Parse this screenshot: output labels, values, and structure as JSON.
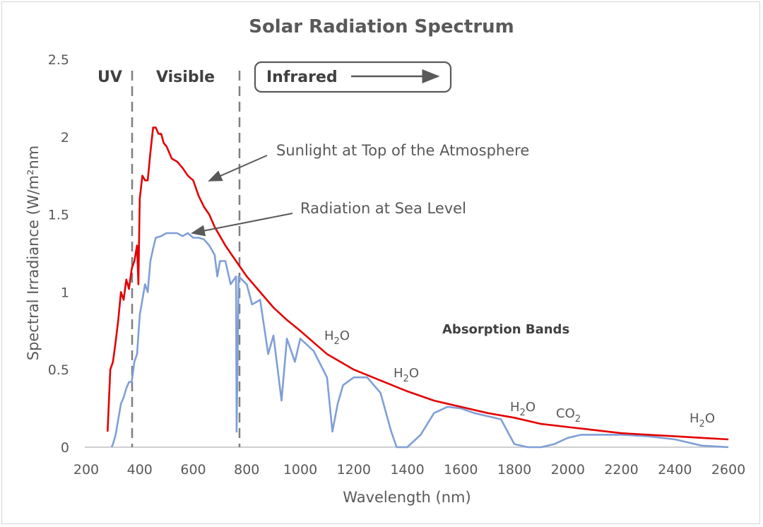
{
  "colors": {
    "top_of_atmosphere": "#e30000",
    "sea_level": "#7f9fd6",
    "axis": "#bfbfbf",
    "text": "#595959",
    "annotation_line": "#595959"
  },
  "chart_data": {
    "type": "line",
    "title": "Solar Radiation Spectrum",
    "xlabel": "Wavelength (nm)",
    "ylabel": "Spectral Irradiance (W/m²nm",
    "xlim": [
      200,
      2600
    ],
    "ylim": [
      0,
      2.5
    ],
    "x_ticks": [
      "200",
      "400",
      "600",
      "800",
      "1000",
      "1200",
      "1400",
      "1600",
      "1800",
      "2000",
      "2200",
      "2400",
      "2600"
    ],
    "y_ticks": [
      "0",
      "0.5",
      "1",
      "1.5",
      "2",
      "2.5"
    ],
    "grid": false,
    "regions": [
      {
        "label": "UV"
      },
      {
        "label": "Visible"
      },
      {
        "label": "Infrared"
      }
    ],
    "region_boundaries_nm": [
      375,
      775
    ],
    "series": [
      {
        "name": "Sunlight at Top of the Atmosphere",
        "color": "#e30000",
        "x": [
          280,
          290,
          300,
          310,
          320,
          330,
          340,
          350,
          360,
          370,
          380,
          390,
          395,
          400,
          410,
          420,
          430,
          440,
          450,
          460,
          470,
          480,
          490,
          500,
          520,
          540,
          560,
          580,
          600,
          620,
          640,
          660,
          680,
          700,
          720,
          740,
          760,
          780,
          800,
          850,
          900,
          950,
          1000,
          1100,
          1200,
          1300,
          1400,
          1500,
          1600,
          1700,
          1800,
          1900,
          2000,
          2100,
          2200,
          2300,
          2400,
          2500,
          2600
        ],
        "y": [
          0.1,
          0.5,
          0.55,
          0.68,
          0.82,
          1.0,
          0.95,
          1.08,
          1.02,
          1.15,
          1.2,
          1.3,
          1.05,
          1.6,
          1.75,
          1.72,
          1.72,
          1.9,
          2.06,
          2.06,
          2.02,
          2.02,
          1.96,
          1.94,
          1.86,
          1.84,
          1.8,
          1.75,
          1.72,
          1.62,
          1.55,
          1.5,
          1.42,
          1.36,
          1.3,
          1.25,
          1.2,
          1.15,
          1.1,
          1.0,
          0.9,
          0.82,
          0.75,
          0.6,
          0.5,
          0.43,
          0.36,
          0.3,
          0.26,
          0.22,
          0.19,
          0.15,
          0.13,
          0.11,
          0.09,
          0.08,
          0.07,
          0.06,
          0.05
        ]
      },
      {
        "name": "Radiation at Sea Level",
        "color": "#7f9fd6",
        "x": [
          295,
          300,
          310,
          320,
          330,
          340,
          350,
          360,
          370,
          380,
          390,
          400,
          410,
          420,
          430,
          440,
          450,
          460,
          480,
          500,
          520,
          540,
          560,
          580,
          600,
          620,
          640,
          660,
          680,
          690,
          700,
          720,
          740,
          760,
          762,
          770,
          800,
          820,
          850,
          880,
          900,
          930,
          950,
          980,
          1000,
          1050,
          1100,
          1120,
          1140,
          1160,
          1200,
          1250,
          1300,
          1340,
          1360,
          1400,
          1450,
          1500,
          1550,
          1600,
          1650,
          1700,
          1750,
          1800,
          1850,
          1900,
          1950,
          2000,
          2050,
          2100,
          2150,
          2200,
          2300,
          2400,
          2450,
          2500,
          2600
        ],
        "y": [
          0.0,
          0.02,
          0.08,
          0.18,
          0.28,
          0.32,
          0.38,
          0.42,
          0.42,
          0.55,
          0.6,
          0.85,
          0.95,
          1.05,
          1.0,
          1.2,
          1.28,
          1.35,
          1.36,
          1.38,
          1.38,
          1.38,
          1.36,
          1.38,
          1.35,
          1.35,
          1.34,
          1.3,
          1.24,
          1.1,
          1.2,
          1.2,
          1.05,
          1.1,
          0.1,
          1.1,
          1.05,
          0.92,
          0.95,
          0.6,
          0.72,
          0.3,
          0.7,
          0.55,
          0.7,
          0.62,
          0.45,
          0.1,
          0.28,
          0.4,
          0.45,
          0.45,
          0.35,
          0.1,
          0.0,
          0.0,
          0.08,
          0.22,
          0.26,
          0.25,
          0.22,
          0.2,
          0.18,
          0.02,
          0.0,
          0.0,
          0.02,
          0.06,
          0.08,
          0.08,
          0.08,
          0.08,
          0.07,
          0.05,
          0.03,
          0.01,
          0.0
        ]
      }
    ],
    "annotations": [
      {
        "text": "Sunlight at Top of the Atmosphere"
      },
      {
        "text": "Radiation at Sea Level"
      },
      {
        "text": "Absorption Bands"
      }
    ],
    "absorption_bands": [
      {
        "molecule": "H",
        "subscript": "2",
        "suffix": "O"
      },
      {
        "molecule": "H",
        "subscript": "2",
        "suffix": "O"
      },
      {
        "molecule": "H",
        "subscript": "2",
        "suffix": "O"
      },
      {
        "molecule": "CO",
        "subscript": "2",
        "suffix": ""
      },
      {
        "molecule": "H",
        "subscript": "2",
        "suffix": "O"
      }
    ]
  }
}
